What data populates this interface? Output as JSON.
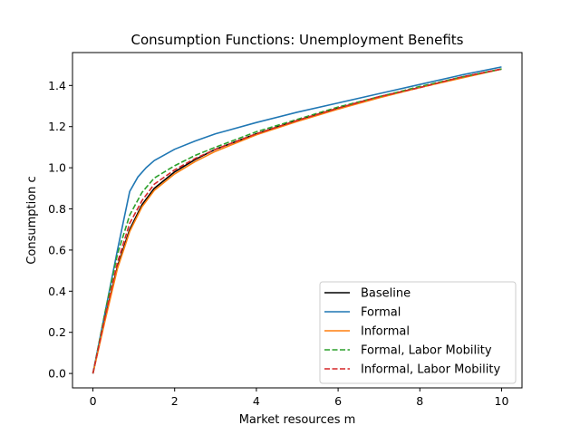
{
  "chart_data": {
    "type": "line",
    "title": "Consumption Functions: Unemployment Benefits",
    "xlabel": "Market resources m",
    "ylabel": "Consumption c",
    "xlim": [
      -0.5,
      10.5
    ],
    "ylim": [
      -0.07,
      1.56
    ],
    "xticks": [
      0,
      2,
      4,
      6,
      8,
      10
    ],
    "yticks": [
      0.0,
      0.2,
      0.4,
      0.6,
      0.8,
      1.0,
      1.2,
      1.4
    ],
    "xtick_labels": [
      "0",
      "2",
      "4",
      "6",
      "8",
      "10"
    ],
    "ytick_labels": [
      "0.0",
      "0.2",
      "0.4",
      "0.6",
      "0.8",
      "1.0",
      "1.2",
      "1.4"
    ],
    "grid": false,
    "legend_position": "lower-right",
    "series": [
      {
        "name": "Baseline",
        "color": "#000000",
        "style": "solid",
        "x": [
          0,
          0.3,
          0.6,
          0.9,
          1.2,
          1.5,
          2,
          2.5,
          3,
          4,
          5,
          6,
          7,
          8,
          9,
          10
        ],
        "y": [
          0,
          0.27,
          0.52,
          0.7,
          0.82,
          0.9,
          0.98,
          1.04,
          1.09,
          1.165,
          1.23,
          1.29,
          1.345,
          1.39,
          1.44,
          1.48
        ]
      },
      {
        "name": "Formal",
        "color": "#1f77b4",
        "style": "solid",
        "x": [
          0,
          0.3,
          0.6,
          0.9,
          1.1,
          1.3,
          1.5,
          2,
          2.5,
          3,
          4,
          5,
          6,
          7,
          8,
          9,
          10
        ],
        "y": [
          0,
          0.3,
          0.6,
          0.885,
          0.955,
          1.0,
          1.035,
          1.09,
          1.13,
          1.165,
          1.22,
          1.27,
          1.315,
          1.36,
          1.405,
          1.45,
          1.49
        ]
      },
      {
        "name": "Informal",
        "color": "#ff7f0e",
        "style": "solid",
        "x": [
          0,
          0.3,
          0.6,
          0.9,
          1.2,
          1.5,
          2,
          2.5,
          3,
          4,
          5,
          6,
          7,
          8,
          9,
          10
        ],
        "y": [
          0,
          0.26,
          0.51,
          0.69,
          0.81,
          0.89,
          0.97,
          1.03,
          1.08,
          1.16,
          1.225,
          1.285,
          1.34,
          1.39,
          1.435,
          1.48
        ]
      },
      {
        "name": "Formal, Labor Mobility",
        "color": "#2ca02c",
        "style": "dashed",
        "x": [
          0,
          0.3,
          0.6,
          0.9,
          1.2,
          1.5,
          2,
          2.5,
          3,
          4,
          5,
          6,
          7,
          8,
          9,
          10
        ],
        "y": [
          0,
          0.3,
          0.58,
          0.77,
          0.88,
          0.95,
          1.01,
          1.06,
          1.1,
          1.175,
          1.235,
          1.295,
          1.345,
          1.395,
          1.44,
          1.48
        ]
      },
      {
        "name": "Informal, Labor Mobility",
        "color": "#d62728",
        "style": "dashed",
        "x": [
          0,
          0.3,
          0.6,
          0.9,
          1.2,
          1.5,
          2,
          2.5,
          3,
          4,
          5,
          6,
          7,
          8,
          9,
          10
        ],
        "y": [
          0,
          0.28,
          0.54,
          0.73,
          0.84,
          0.92,
          0.99,
          1.045,
          1.09,
          1.165,
          1.23,
          1.29,
          1.345,
          1.39,
          1.44,
          1.48
        ]
      }
    ]
  }
}
